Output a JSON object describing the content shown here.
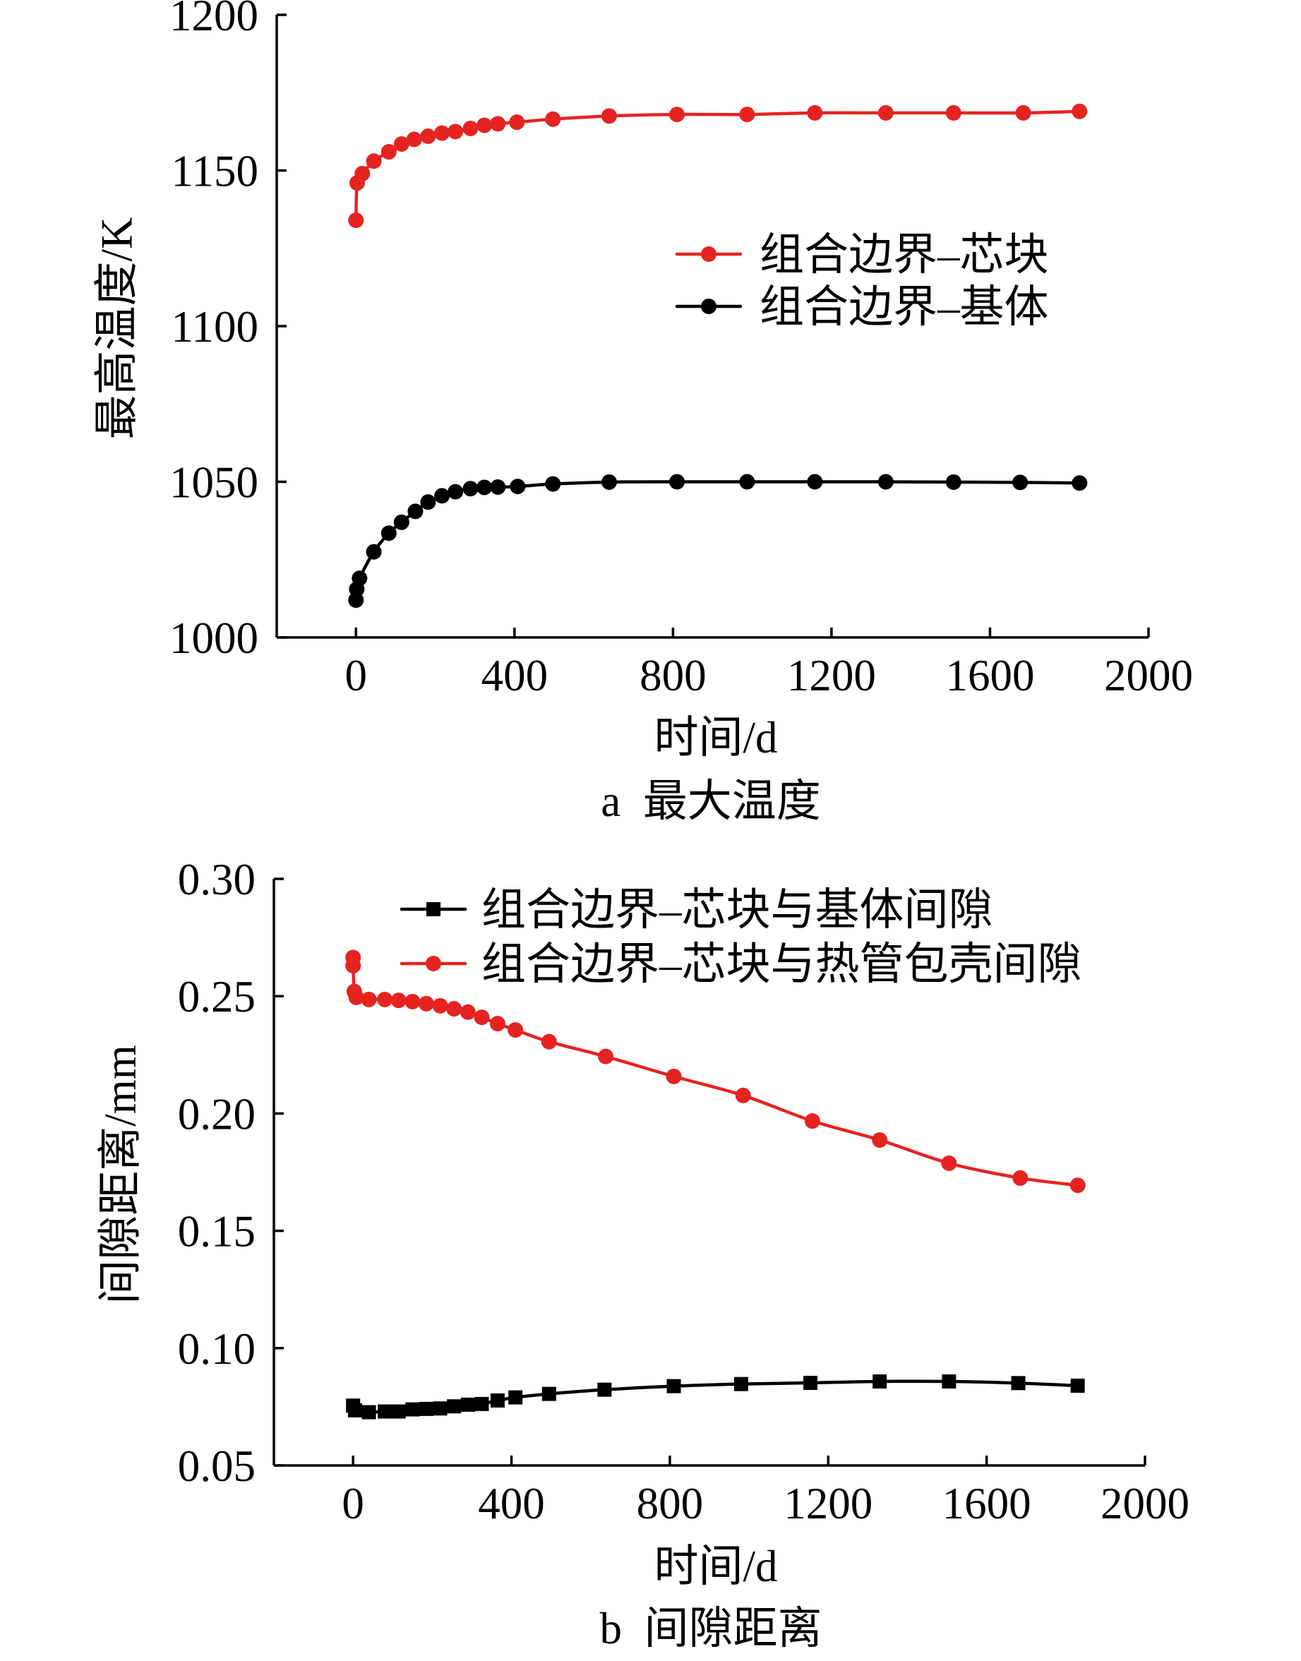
{
  "chart_data": [
    {
      "type": "line",
      "caption": "a  最大温度",
      "xlabel": "时间/d",
      "ylabel": "最高温度/K",
      "xlim": [
        -200,
        2000
      ],
      "ylim": [
        1000,
        1200
      ],
      "xticks": [
        "0",
        "400",
        "800",
        "1200",
        "1600",
        "2000"
      ],
      "yticks": [
        "1000",
        "1050",
        "1100",
        "1150",
        "1200"
      ],
      "grid": false,
      "legend": "right",
      "series": [
        {
          "name": "组合边界–芯块",
          "color": "#e52421",
          "marker": "circle",
          "x": [
            0,
            3,
            16,
            45,
            83,
            115,
            147,
            182,
            217,
            251,
            289,
            324,
            358,
            406,
            497,
            639,
            810,
            987,
            1158,
            1337,
            1508,
            1684,
            1826
          ],
          "y": [
            1134,
            1146,
            1149,
            1153,
            1156,
            1158.5,
            1160,
            1161,
            1162,
            1162.5,
            1163.5,
            1164.5,
            1165,
            1165.5,
            1166.5,
            1167.5,
            1168,
            1168,
            1168.5,
            1168.5,
            1168.5,
            1168.5,
            1169
          ]
        },
        {
          "name": "组合边界–基体",
          "color": "#000000",
          "marker": "circle",
          "x": [
            0,
            2,
            9,
            45,
            83,
            115,
            150,
            182,
            217,
            251,
            289,
            324,
            358,
            408,
            497,
            639,
            810,
            987,
            1158,
            1337,
            1508,
            1676,
            1826
          ],
          "y": [
            1012,
            1015.5,
            1019,
            1027.5,
            1033.5,
            1037,
            1040.5,
            1043.5,
            1045.5,
            1046.8,
            1047.8,
            1048.2,
            1048.3,
            1048.5,
            1049.3,
            1049.9,
            1050,
            1050,
            1050,
            1050,
            1049.9,
            1049.8,
            1049.6
          ]
        }
      ]
    },
    {
      "type": "line",
      "caption": "b  间隙距离",
      "xlabel": "时间/d",
      "ylabel": "间隙距离/mm",
      "xlim": [
        -200,
        2000
      ],
      "ylim": [
        0.05,
        0.3
      ],
      "xticks": [
        "0",
        "400",
        "800",
        "1200",
        "1600",
        "2000"
      ],
      "yticks": [
        "0.05",
        "0.10",
        "0.15",
        "0.20",
        "0.25",
        "0.30"
      ],
      "grid": false,
      "legend": "top",
      "series": [
        {
          "name": "组合边界–芯块与基体间隙",
          "color": "#000000",
          "marker": "square",
          "x": [
            0,
            5,
            40,
            80,
            115,
            150,
            185,
            220,
            255,
            290,
            325,
            365,
            410,
            495,
            635,
            810,
            980,
            1155,
            1330,
            1505,
            1680,
            1830
          ],
          "y": [
            0.0755,
            0.0735,
            0.0727,
            0.073,
            0.073,
            0.0739,
            0.0741,
            0.0743,
            0.0752,
            0.0759,
            0.0762,
            0.0777,
            0.079,
            0.0805,
            0.0823,
            0.0838,
            0.0847,
            0.0852,
            0.0858,
            0.0858,
            0.0851,
            0.084
          ]
        },
        {
          "name": "组合边界–芯块与热管包壳间隙",
          "color": "#e52421",
          "marker": "circle",
          "x": [
            0,
            0,
            3,
            8,
            40,
            80,
            115,
            150,
            185,
            220,
            255,
            290,
            325,
            365,
            410,
            495,
            638,
            810,
            985,
            1160,
            1330,
            1505,
            1685,
            1830
          ],
          "y": [
            0.2665,
            0.263,
            0.252,
            0.2495,
            0.2486,
            0.2486,
            0.2482,
            0.2477,
            0.2468,
            0.2459,
            0.2446,
            0.2432,
            0.241,
            0.2383,
            0.2356,
            0.2306,
            0.2243,
            0.2158,
            0.2077,
            0.1968,
            0.1887,
            0.1788,
            0.1725,
            0.1694
          ]
        }
      ]
    }
  ]
}
